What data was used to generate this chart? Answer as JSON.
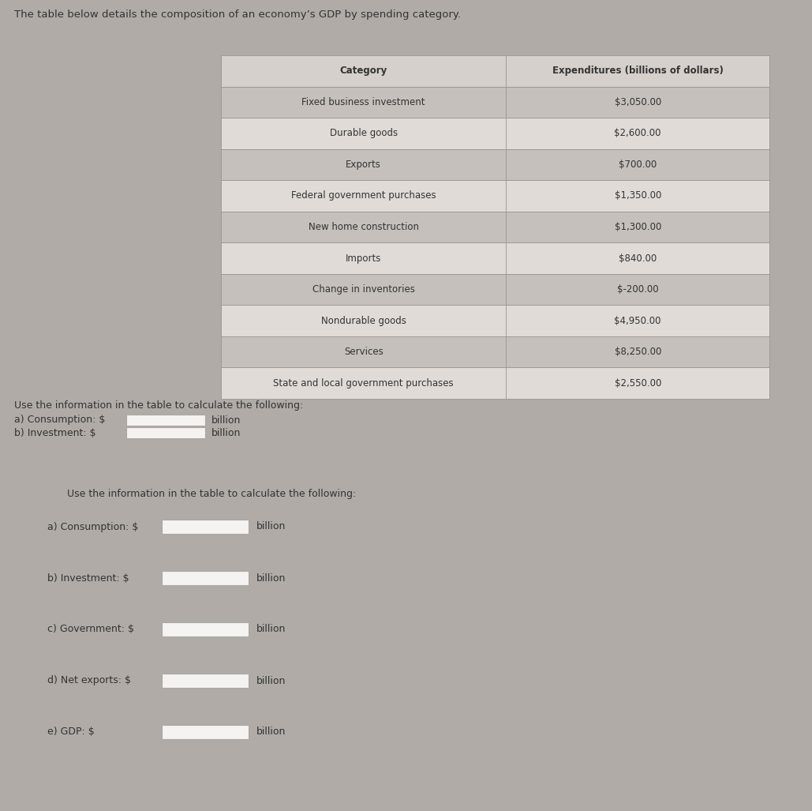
{
  "title_text": "The table below details the composition of an economy’s GDP by spending category.",
  "table_categories": [
    "Category",
    "Fixed business investment",
    "Durable goods",
    "Exports",
    "Federal government purchases",
    "New home construction",
    "Imports",
    "Change in inventories",
    "Nondurable goods",
    "Services",
    "State and local government purchases"
  ],
  "table_values": [
    "Expenditures (billions of dollars)",
    "$3,050.00",
    "$2,600.00",
    "$700.00",
    "$1,350.00",
    "$1,300.00",
    "$840.00",
    "$-200.00",
    "$4,950.00",
    "$8,250.00",
    "$2,550.00"
  ],
  "section1_text": "Use the information in the table to calculate the following:",
  "section1_items": [
    "a) Consumption: $",
    "b) Investment: $"
  ],
  "section2_text": "Use the information in the table to calculate the following:",
  "section2_items": [
    "a) Consumption: $",
    "b) Investment: $",
    "c) Government: $",
    "d) Net exports: $",
    "e) GDP: $"
  ],
  "bg_top": "#eae6e2",
  "bg_bottom": "#dbd7d2",
  "table_header_bg": "#d5d0cc",
  "table_odd_bg": "#c5c0bb",
  "table_even_bg": "#e0dbd7",
  "table_border": "#9a9590",
  "input_box_bg": "#f5f3f1",
  "input_box_border": "#aaa8a4",
  "text_color": "#333333",
  "gap_color": "#b0aba6"
}
